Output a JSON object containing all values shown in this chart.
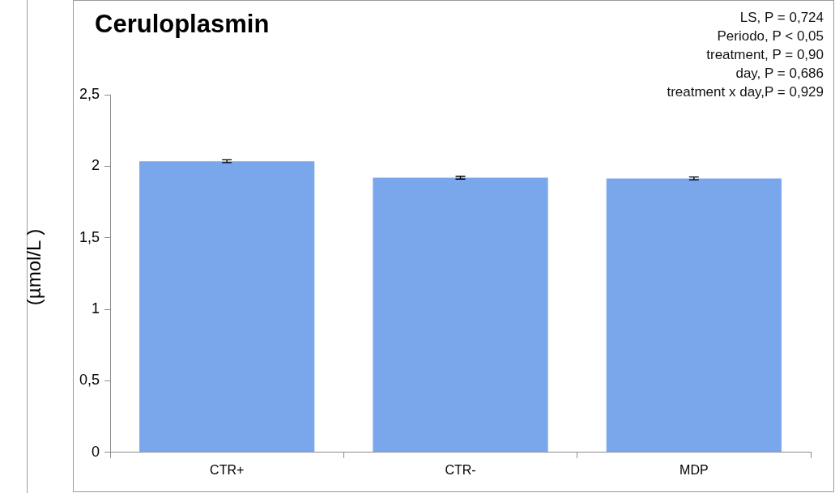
{
  "chart_data": {
    "type": "bar",
    "title": "Ceruloplasmin",
    "ylabel": "(µmol/L )",
    "categories": [
      "CTR+",
      "CTR-",
      "MDP"
    ],
    "values": [
      2.035,
      1.92,
      1.915
    ],
    "errors": [
      0.01,
      0.01,
      0.01
    ],
    "color": "#7aa7ec",
    "ylim": [
      0,
      2.5
    ],
    "yticks": [
      0,
      {
        "value": 0.5,
        "label": "0,5"
      },
      1,
      {
        "value": 1.5,
        "label": "1,5"
      },
      2,
      {
        "value": 2.5,
        "label": "2,5"
      }
    ],
    "grid": false,
    "annotations": [
      "LS, P = 0,724",
      "Periodo, P < 0,05",
      "treatment, P = 0,90",
      "day, P = 0,686",
      "treatment x day,P = 0,929"
    ]
  }
}
